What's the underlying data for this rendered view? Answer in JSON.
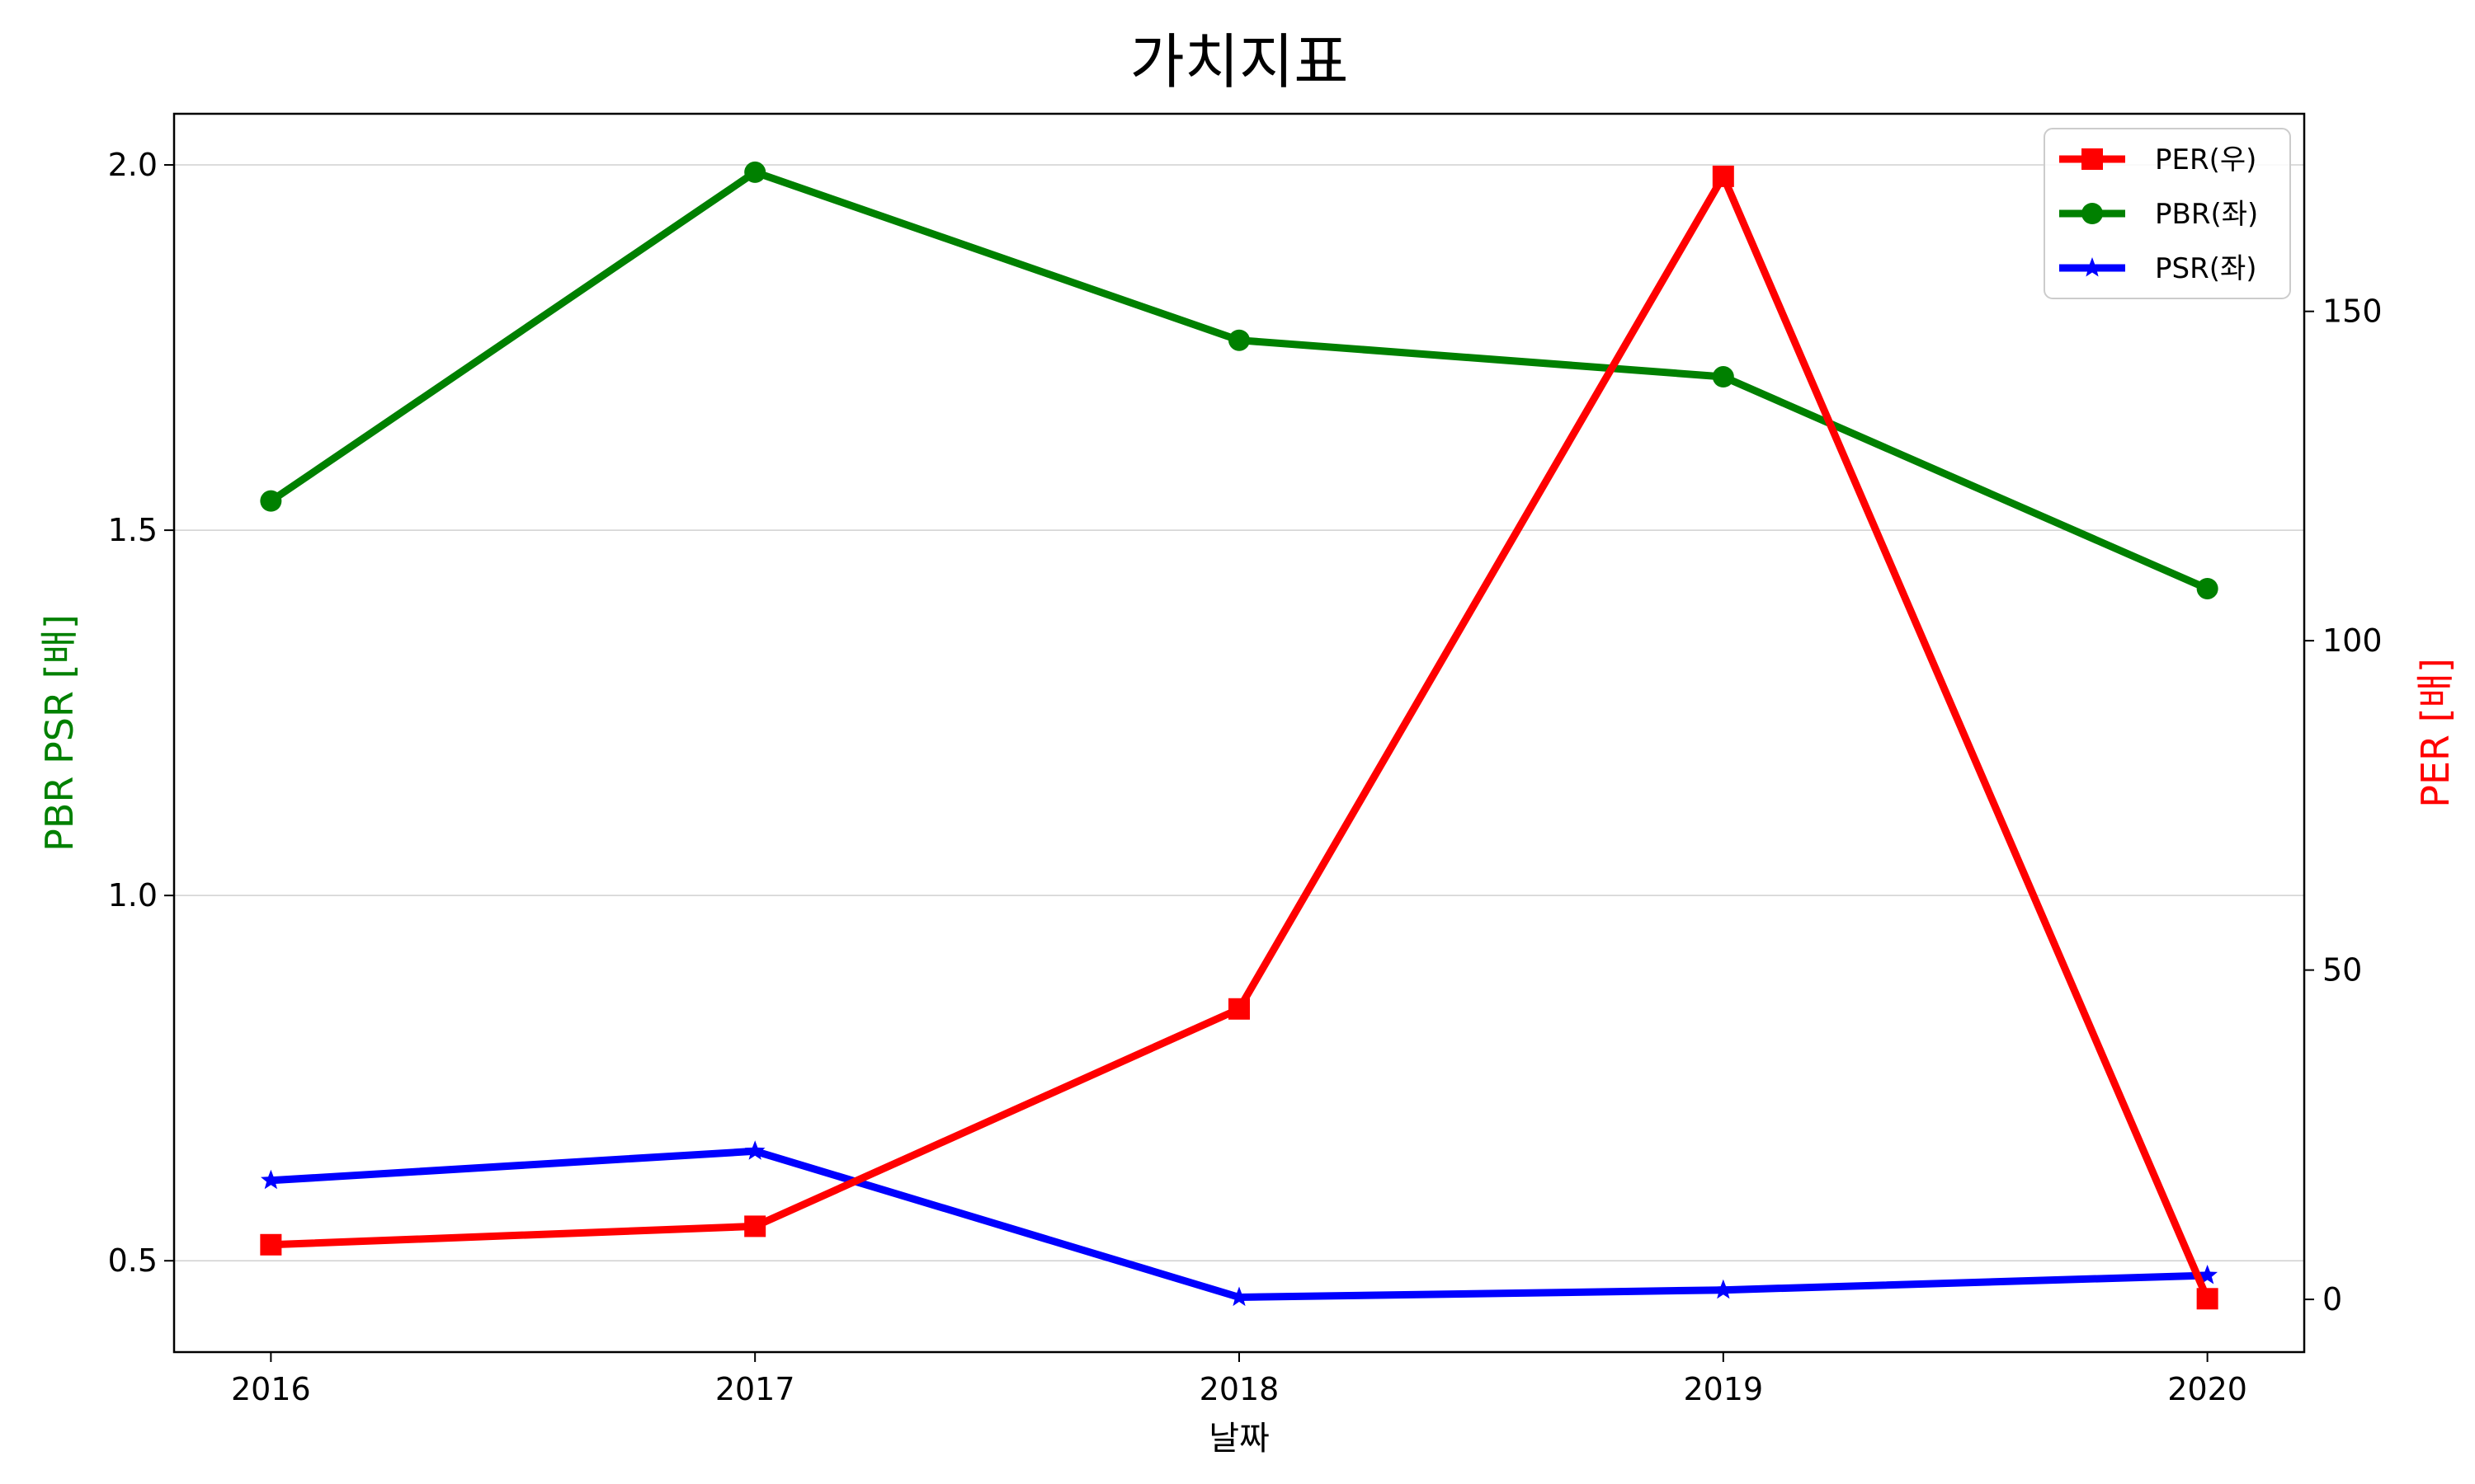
{
  "chart_data": {
    "type": "line",
    "title": "가치지표",
    "xlabel": "날짜",
    "ylabel_left": "PBR PSR [배]",
    "ylabel_right": "PER [배]",
    "x": [
      "2016",
      "2017",
      "2018",
      "2019",
      "2020"
    ],
    "xlim": [
      2015.8,
      2020.2
    ],
    "ylim_left": [
      0.375,
      2.07
    ],
    "ylim_right": [
      -8,
      180
    ],
    "yticks_left": [
      "0.5",
      "1.0",
      "1.5",
      "2.0"
    ],
    "yticks_right": [
      "0",
      "50",
      "100",
      "150"
    ],
    "grid": "horizontal (left axis)",
    "legend_position": "top-right",
    "series": [
      {
        "name": "PER(우)",
        "axis": "right",
        "color": "#ff0000",
        "marker": "square",
        "values": [
          8.3,
          11.1,
          44.1,
          170.5,
          0.1
        ]
      },
      {
        "name": "PBR(좌)",
        "axis": "left",
        "color": "#008000",
        "marker": "circle",
        "values": [
          1.54,
          1.99,
          1.76,
          1.71,
          1.42
        ]
      },
      {
        "name": "PSR(좌)",
        "axis": "left",
        "color": "#0000ff",
        "marker": "star",
        "values": [
          0.61,
          0.65,
          0.45,
          0.46,
          0.48
        ]
      }
    ]
  }
}
